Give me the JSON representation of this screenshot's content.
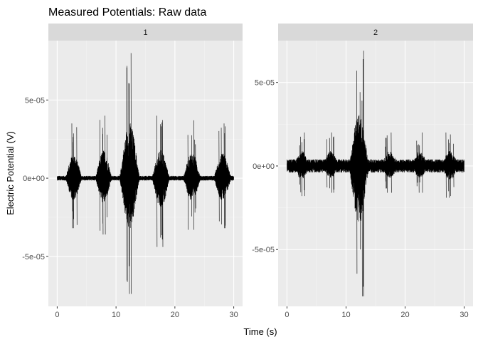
{
  "chart_data": {
    "type": "line",
    "title": "Measured Potentials: Raw data",
    "xlabel": "Time (s)",
    "ylabel": "Electric Potential (V)",
    "grid": true,
    "colors": {
      "panel_bg": "#ebebeb",
      "strip_bg": "#d9d9d9",
      "grid": "#ffffff",
      "line": "#000000"
    },
    "panels": [
      {
        "strip_label": "1",
        "xlim": [
          -1.5,
          31.5
        ],
        "ylim": [
          -8.2e-05,
          8.8e-05
        ],
        "x_ticks": [
          0,
          10,
          20,
          30
        ],
        "x_tick_labels": [
          "0",
          "10",
          "20",
          "30"
        ],
        "y_ticks": [
          -5e-05,
          0,
          5e-05
        ],
        "y_tick_labels": [
          "-5e-05",
          "0e+00",
          "5e-05"
        ],
        "baseline_noise": 1.5e-06,
        "bursts": [
          {
            "center": 2.8,
            "half_width": 1.5,
            "max": 3.5e-05,
            "min": -3.2e-05
          },
          {
            "center": 7.9,
            "half_width": 1.5,
            "max": 4e-05,
            "min": -3.6e-05
          },
          {
            "center": 12.3,
            "half_width": 1.8,
            "max": 8e-05,
            "min": -7.4e-05
          },
          {
            "center": 17.6,
            "half_width": 1.6,
            "max": 4e-05,
            "min": -4.4e-05
          },
          {
            "center": 22.9,
            "half_width": 1.6,
            "max": 3.7e-05,
            "min": -3.3e-05
          },
          {
            "center": 28.1,
            "half_width": 1.6,
            "max": 3.5e-05,
            "min": -3.2e-05
          }
        ]
      },
      {
        "strip_label": "2",
        "xlim": [
          -1.5,
          31.5
        ],
        "ylim": [
          -8.4e-05,
          7.5e-05
        ],
        "x_ticks": [
          0,
          10,
          20,
          30
        ],
        "x_tick_labels": [
          "0",
          "10",
          "20",
          "30"
        ],
        "y_ticks": [
          -5e-05,
          0,
          5e-05
        ],
        "y_tick_labels": [
          "-5e-05",
          "0e+00",
          "5e-05"
        ],
        "baseline_noise": 4e-06,
        "bursts": [
          {
            "center": 2.5,
            "half_width": 1.5,
            "max": 2e-05,
            "min": -1.8e-05
          },
          {
            "center": 7.4,
            "half_width": 1.5,
            "max": 2e-05,
            "min": -1.6e-05
          },
          {
            "center": 12.2,
            "half_width": 1.8,
            "max": 6.9e-05,
            "min": -7.8e-05
          },
          {
            "center": 17.4,
            "half_width": 1.6,
            "max": 2e-05,
            "min": -1.6e-05
          },
          {
            "center": 22.5,
            "half_width": 1.5,
            "max": 2e-05,
            "min": -1.6e-05
          },
          {
            "center": 27.6,
            "half_width": 1.6,
            "max": 2e-05,
            "min": -1.9e-05
          }
        ]
      }
    ]
  }
}
